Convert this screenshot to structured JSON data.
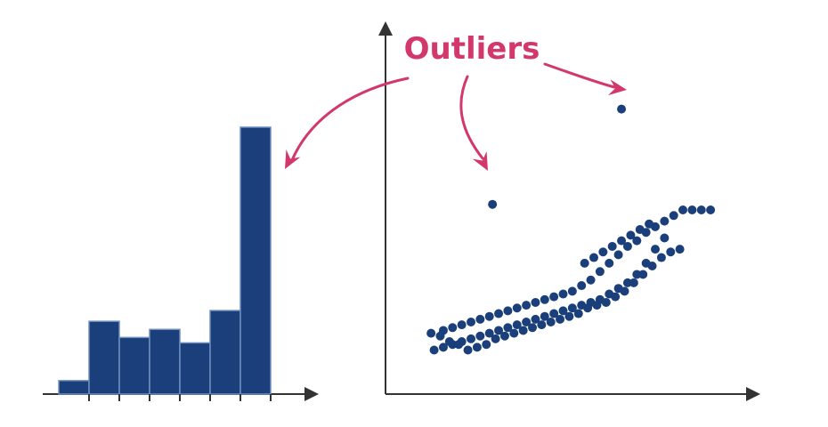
{
  "annotation": {
    "label": "Outliers"
  },
  "colors": {
    "bar_fill": "#1a3f7a",
    "bar_stroke": "#6f8fbf",
    "point": "#1a3f7a",
    "axis": "#333333",
    "annotation": "#d2386c"
  },
  "chart_data": [
    {
      "type": "bar",
      "title": "",
      "xlabel": "",
      "ylabel": "",
      "values": [
        1,
        5.4,
        4.2,
        4.8,
        3.8,
        6.2,
        19.8
      ],
      "outlier_index": 6,
      "grid": false,
      "legend": "none"
    },
    {
      "type": "scatter",
      "title": "",
      "xlabel": "",
      "ylabel": "",
      "xlim": [
        0,
        100
      ],
      "ylim": [
        0,
        100
      ],
      "grid": false,
      "legend": "none",
      "points": [
        [
          8,
          10
        ],
        [
          11,
          11
        ],
        [
          14,
          12
        ],
        [
          17,
          13
        ],
        [
          20,
          14
        ],
        [
          23,
          15
        ],
        [
          26,
          16
        ],
        [
          29,
          17
        ],
        [
          32,
          18
        ],
        [
          35,
          19
        ],
        [
          38,
          20
        ],
        [
          41,
          21
        ],
        [
          44,
          22
        ],
        [
          47,
          23
        ],
        [
          50,
          24
        ],
        [
          53,
          25
        ],
        [
          56,
          26
        ],
        [
          59,
          27
        ],
        [
          62,
          28
        ],
        [
          65,
          30
        ],
        [
          68,
          32
        ],
        [
          71,
          34
        ],
        [
          74,
          37
        ],
        [
          77,
          41
        ],
        [
          80,
          46
        ],
        [
          83,
          50
        ],
        [
          11,
          17
        ],
        [
          14,
          18
        ],
        [
          17,
          19
        ],
        [
          20,
          20
        ],
        [
          23,
          21
        ],
        [
          26,
          22
        ],
        [
          29,
          23
        ],
        [
          32,
          24
        ],
        [
          35,
          25
        ],
        [
          38,
          26
        ],
        [
          41,
          27
        ],
        [
          44,
          28
        ],
        [
          47,
          29
        ],
        [
          50,
          30
        ],
        [
          53,
          31
        ],
        [
          56,
          33
        ],
        [
          59,
          35
        ],
        [
          62,
          38
        ],
        [
          65,
          41
        ],
        [
          68,
          44
        ],
        [
          71,
          47
        ],
        [
          74,
          49
        ],
        [
          77,
          52
        ],
        [
          80,
          54
        ],
        [
          83,
          56
        ],
        [
          86,
          58
        ],
        [
          89,
          60
        ],
        [
          92,
          60
        ],
        [
          95,
          60
        ],
        [
          98,
          60
        ],
        [
          7,
          16
        ],
        [
          10,
          15
        ],
        [
          13,
          13
        ],
        [
          16,
          12
        ],
        [
          19,
          10
        ],
        [
          22,
          11
        ],
        [
          25,
          12
        ],
        [
          28,
          14
        ],
        [
          31,
          15
        ],
        [
          34,
          16
        ],
        [
          37,
          17
        ],
        [
          40,
          18
        ],
        [
          43,
          19
        ],
        [
          46,
          20
        ],
        [
          49,
          21
        ],
        [
          52,
          22
        ],
        [
          55,
          23
        ],
        [
          58,
          25
        ],
        [
          61,
          26
        ],
        [
          64,
          27
        ],
        [
          67,
          29
        ],
        [
          70,
          31
        ],
        [
          73,
          34
        ],
        [
          76,
          37
        ],
        [
          79,
          40
        ],
        [
          82,
          43
        ],
        [
          85,
          45
        ],
        [
          88,
          46
        ],
        [
          57,
          41
        ],
        [
          60,
          43
        ],
        [
          63,
          45
        ],
        [
          66,
          47
        ],
        [
          69,
          49
        ],
        [
          72,
          51
        ],
        [
          75,
          53
        ],
        [
          78,
          55
        ]
      ],
      "outliers": [
        [
          27,
          62
        ],
        [
          69,
          96
        ]
      ]
    }
  ]
}
